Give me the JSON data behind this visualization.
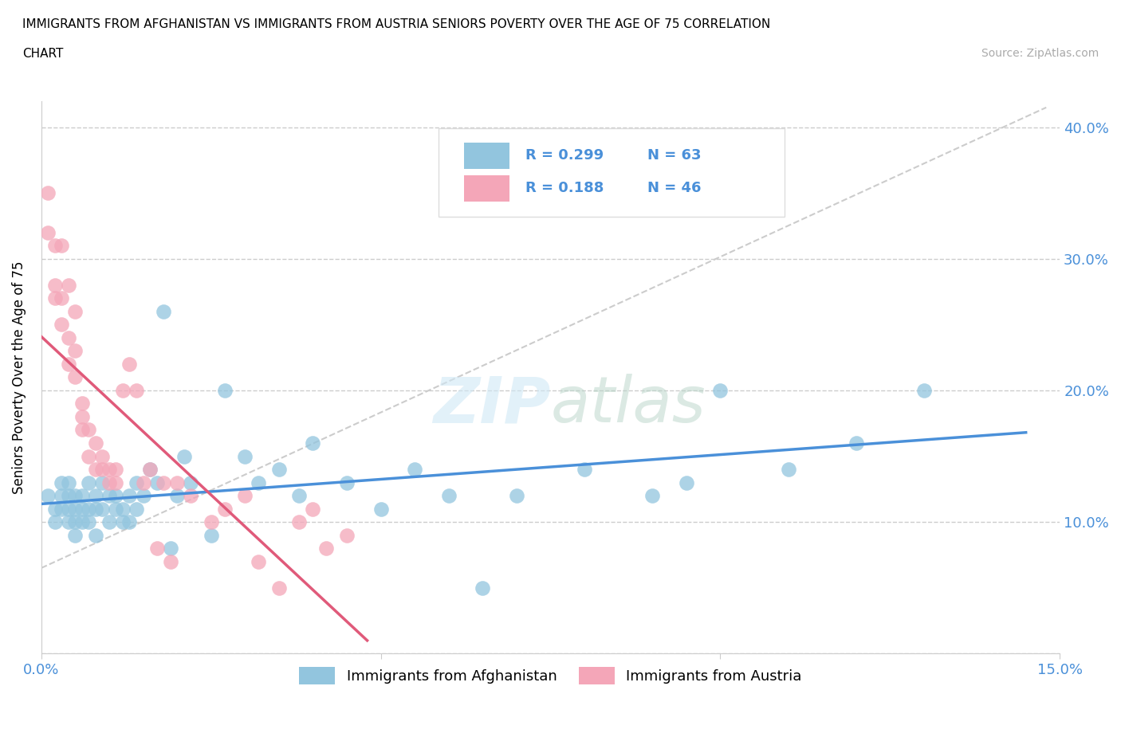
{
  "title_line1": "IMMIGRANTS FROM AFGHANISTAN VS IMMIGRANTS FROM AUSTRIA SENIORS POVERTY OVER THE AGE OF 75 CORRELATION",
  "title_line2": "CHART",
  "source": "Source: ZipAtlas.com",
  "ylabel": "Seniors Poverty Over the Age of 75",
  "color_afghanistan": "#92c5de",
  "color_austria": "#f4a6b8",
  "line_color_afghanistan": "#4a90d9",
  "line_color_austria": "#e05a7a",
  "xmin": 0.0,
  "xmax": 0.15,
  "ymin": 0.0,
  "ymax": 0.42,
  "R_afghanistan": 0.299,
  "N_afghanistan": 63,
  "R_austria": 0.188,
  "N_austria": 46,
  "legend_label_afghanistan": "Immigrants from Afghanistan",
  "legend_label_austria": "Immigrants from Austria",
  "watermark_zip": "ZIP",
  "watermark_atlas": "atlas",
  "afghanistan_x": [
    0.001,
    0.002,
    0.002,
    0.003,
    0.003,
    0.003,
    0.004,
    0.004,
    0.004,
    0.004,
    0.005,
    0.005,
    0.005,
    0.005,
    0.006,
    0.006,
    0.006,
    0.007,
    0.007,
    0.007,
    0.008,
    0.008,
    0.008,
    0.009,
    0.009,
    0.01,
    0.01,
    0.011,
    0.011,
    0.012,
    0.012,
    0.013,
    0.013,
    0.014,
    0.014,
    0.015,
    0.016,
    0.017,
    0.018,
    0.019,
    0.02,
    0.021,
    0.022,
    0.025,
    0.027,
    0.03,
    0.032,
    0.035,
    0.038,
    0.04,
    0.045,
    0.05,
    0.055,
    0.06,
    0.065,
    0.07,
    0.08,
    0.09,
    0.095,
    0.1,
    0.11,
    0.12,
    0.13
  ],
  "afghanistan_y": [
    0.12,
    0.11,
    0.1,
    0.12,
    0.13,
    0.11,
    0.1,
    0.12,
    0.13,
    0.11,
    0.1,
    0.11,
    0.12,
    0.09,
    0.11,
    0.1,
    0.12,
    0.11,
    0.13,
    0.1,
    0.12,
    0.11,
    0.09,
    0.11,
    0.13,
    0.12,
    0.1,
    0.11,
    0.12,
    0.1,
    0.11,
    0.12,
    0.1,
    0.11,
    0.13,
    0.12,
    0.14,
    0.13,
    0.26,
    0.08,
    0.12,
    0.15,
    0.13,
    0.09,
    0.2,
    0.15,
    0.13,
    0.14,
    0.12,
    0.16,
    0.13,
    0.11,
    0.14,
    0.12,
    0.05,
    0.12,
    0.14,
    0.12,
    0.13,
    0.2,
    0.14,
    0.16,
    0.2
  ],
  "austria_x": [
    0.001,
    0.001,
    0.002,
    0.002,
    0.002,
    0.003,
    0.003,
    0.003,
    0.004,
    0.004,
    0.004,
    0.005,
    0.005,
    0.005,
    0.006,
    0.006,
    0.006,
    0.007,
    0.007,
    0.008,
    0.008,
    0.009,
    0.009,
    0.01,
    0.01,
    0.011,
    0.011,
    0.012,
    0.013,
    0.014,
    0.015,
    0.016,
    0.017,
    0.018,
    0.019,
    0.02,
    0.022,
    0.025,
    0.027,
    0.03,
    0.032,
    0.035,
    0.038,
    0.04,
    0.042,
    0.045
  ],
  "austria_y": [
    0.35,
    0.32,
    0.31,
    0.28,
    0.27,
    0.31,
    0.27,
    0.25,
    0.28,
    0.24,
    0.22,
    0.26,
    0.23,
    0.21,
    0.19,
    0.18,
    0.17,
    0.17,
    0.15,
    0.16,
    0.14,
    0.15,
    0.14,
    0.14,
    0.13,
    0.14,
    0.13,
    0.2,
    0.22,
    0.2,
    0.13,
    0.14,
    0.08,
    0.13,
    0.07,
    0.13,
    0.12,
    0.1,
    0.11,
    0.12,
    0.07,
    0.05,
    0.1,
    0.11,
    0.08,
    0.09
  ]
}
